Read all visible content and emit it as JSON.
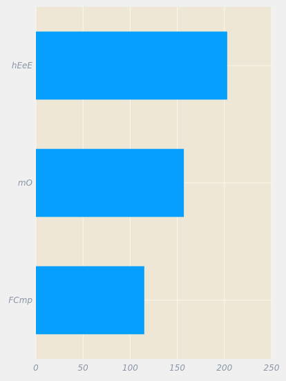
{
  "chart_data": {
    "type": "bar",
    "orientation": "horizontal",
    "categories": [
      "hEeE",
      "mO",
      "FCmp"
    ],
    "values": [
      203,
      157,
      115
    ],
    "x_ticks": [
      0,
      50,
      100,
      150,
      200,
      250
    ],
    "xlim": [
      0,
      250
    ],
    "title": "",
    "xlabel": "",
    "ylabel": "",
    "grid": true,
    "colors": {
      "bar": "#069ffe",
      "plot_background": "#efe7d6",
      "figure_background": "#f0f0f0",
      "grid": "#fbf7ee",
      "text": "#8a96a6"
    }
  }
}
